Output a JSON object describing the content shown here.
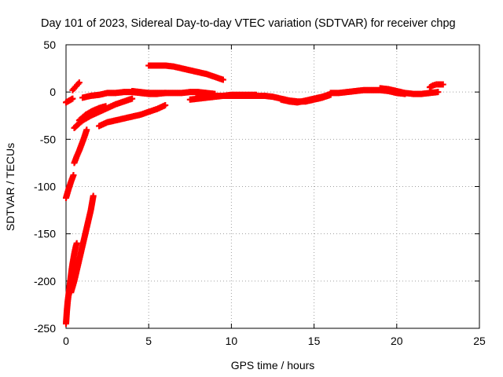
{
  "chart_data": {
    "type": "scatter",
    "title": "Day 101 of 2023, Sidereal Day-to-day VTEC variation (SDTVAR) for receiver chpg",
    "xlabel": "GPS time / hours",
    "ylabel": "SDTVAR / TECUs",
    "xlim": [
      0,
      25
    ],
    "ylim": [
      -250,
      50
    ],
    "xticks": [
      "0",
      "5",
      "10",
      "15",
      "20",
      "25"
    ],
    "yticks": [
      "-250",
      "-200",
      "-150",
      "-100",
      "-50",
      "0",
      "50"
    ],
    "grid": true,
    "legend": "none",
    "marker": "+",
    "color": "#ff0000",
    "series": [
      {
        "name": "s1",
        "x": [
          0.0,
          0.05,
          0.1,
          0.15,
          0.2,
          0.25,
          0.3,
          0.35,
          0.4,
          0.45,
          0.5,
          0.55,
          0.6,
          0.65
        ],
        "y": [
          -245,
          -232,
          -222,
          -215,
          -208,
          -201,
          -194,
          -187,
          -181,
          -176,
          -171,
          -167,
          -163,
          -160
        ]
      },
      {
        "name": "s2",
        "x": [
          0.3,
          0.5,
          0.7,
          0.9,
          1.1,
          1.3,
          1.5,
          1.65
        ],
        "y": [
          -212,
          -200,
          -185,
          -170,
          -155,
          -140,
          -125,
          -110
        ]
      },
      {
        "name": "s3",
        "x": [
          0.0,
          0.15,
          0.3,
          0.45
        ],
        "y": [
          -112,
          -103,
          -95,
          -88
        ]
      },
      {
        "name": "s4",
        "x": [
          0.5,
          0.65,
          0.8,
          0.95,
          1.1,
          1.25
        ],
        "y": [
          -75,
          -68,
          -62,
          -55,
          -48,
          -40
        ]
      },
      {
        "name": "s5",
        "x": [
          0.5,
          0.8,
          1.1,
          1.5,
          2.0,
          2.5,
          3.0,
          3.5,
          4.0
        ],
        "y": [
          -38,
          -33,
          -29,
          -25,
          -21,
          -17,
          -13,
          -10,
          -7
        ]
      },
      {
        "name": "s6",
        "x": [
          0.8,
          1.2,
          1.6,
          2.0,
          2.4
        ],
        "y": [
          -30,
          -24,
          -20,
          -17,
          -15
        ]
      },
      {
        "name": "s7",
        "x": [
          2.0,
          2.5,
          3.0,
          3.5,
          4.0,
          4.5,
          5.0,
          5.5,
          6.0
        ],
        "y": [
          -36,
          -32,
          -30,
          -28,
          -26,
          -24,
          -21,
          -18,
          -14
        ]
      },
      {
        "name": "s8",
        "x": [
          0.0,
          0.2,
          0.4
        ],
        "y": [
          -11,
          -9,
          -7
        ]
      },
      {
        "name": "s9",
        "x": [
          0.4,
          0.6,
          0.8
        ],
        "y": [
          2,
          6,
          10
        ]
      },
      {
        "name": "s10",
        "x": [
          1.0,
          1.5,
          2.0,
          2.5,
          3.0,
          3.5,
          4.0,
          4.5,
          5.0,
          5.5,
          6.0
        ],
        "y": [
          -6,
          -4,
          -3,
          -1,
          -1,
          0,
          0,
          -1,
          -2,
          -2,
          -1
        ]
      },
      {
        "name": "s11",
        "x": [
          4.0,
          4.5,
          5.0,
          5.5,
          6.0,
          6.5,
          7.0,
          7.5,
          8.0,
          8.5,
          9.0
        ],
        "y": [
          1,
          0,
          -1,
          -1,
          -1,
          -1,
          -1,
          0,
          0,
          -1,
          -2
        ]
      },
      {
        "name": "s12",
        "x": [
          5.0,
          5.5,
          6.0,
          6.5,
          7.0,
          7.5,
          8.0,
          8.5,
          9.0,
          9.5
        ],
        "y": [
          28,
          28,
          28,
          27,
          25,
          23,
          21,
          19,
          16,
          13
        ]
      },
      {
        "name": "s13",
        "x": [
          7.5,
          8.0,
          8.5,
          9.0,
          9.5,
          10.0,
          10.5,
          11.0,
          11.5
        ],
        "y": [
          -8,
          -7,
          -6,
          -5,
          -4,
          -3,
          -3,
          -3,
          -3
        ]
      },
      {
        "name": "s14",
        "x": [
          8.0,
          8.5,
          9.0,
          9.5,
          10.0,
          10.5,
          11.0,
          11.5,
          12.0,
          12.5,
          13.0,
          13.5,
          14.0,
          14.5,
          15.0,
          15.5,
          16.0
        ],
        "y": [
          -3,
          -4,
          -4,
          -4,
          -4,
          -4,
          -4,
          -4,
          -4,
          -5,
          -7,
          -9,
          -10,
          -10,
          -8,
          -6,
          -3
        ]
      },
      {
        "name": "s15",
        "x": [
          13.0,
          13.5,
          14.0,
          14.5,
          15.0,
          15.5,
          16.0
        ],
        "y": [
          -8,
          -10,
          -11,
          -9,
          -7,
          -5,
          -2
        ]
      },
      {
        "name": "s16",
        "x": [
          16.0,
          16.5,
          17.0,
          17.5,
          18.0,
          18.5,
          19.0,
          19.5,
          20.0,
          20.5
        ],
        "y": [
          -1,
          -1,
          0,
          1,
          2,
          2,
          2,
          1,
          -1,
          -2
        ]
      },
      {
        "name": "s17",
        "x": [
          19.0,
          19.5,
          20.0,
          20.5,
          21.0,
          21.5,
          22.0,
          22.5
        ],
        "y": [
          4,
          3,
          1,
          -1,
          -2,
          -2,
          -1,
          0
        ]
      },
      {
        "name": "s18",
        "x": [
          22.0,
          22.2,
          22.4,
          22.6,
          22.8
        ],
        "y": [
          5,
          7,
          8,
          8,
          8
        ]
      }
    ]
  }
}
